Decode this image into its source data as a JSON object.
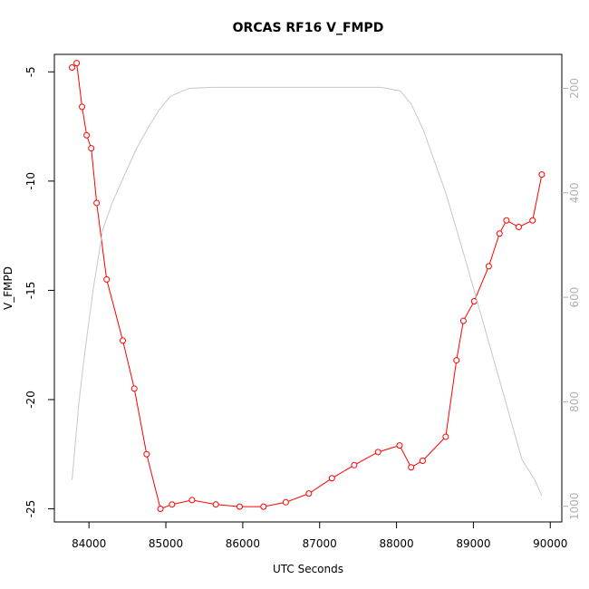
{
  "chart_data": {
    "type": "line",
    "title": "ORCAS RF16 V_FMPD",
    "xlabel": "UTC Seconds",
    "ylabel": "V_FMPD",
    "xlim": [
      83550,
      90150
    ],
    "ylim": [
      -25.6,
      -4.2
    ],
    "y2lim": [
      1030,
      135
    ],
    "y2_reversed": true,
    "grid": false,
    "x_ticks": [
      84000,
      85000,
      86000,
      87000,
      88000,
      89000,
      90000
    ],
    "y_ticks": [
      -25,
      -20,
      -15,
      -10,
      -5
    ],
    "y2_ticks": [
      200,
      400,
      600,
      800,
      1000
    ],
    "series": [
      {
        "color": "#ff0000",
        "marker": "open-circle",
        "x": [
          83780,
          83840,
          83910,
          83970,
          84030,
          84100,
          84230,
          84440,
          84590,
          84750,
          84930,
          85080,
          85340,
          85650,
          85960,
          86270,
          86560,
          86860,
          87160,
          87450,
          87760,
          88040,
          88190,
          88340,
          88640,
          88780,
          88870,
          89010,
          89200,
          89340,
          89430,
          89590,
          89770,
          89890
        ],
        "y": [
          -4.8,
          -4.6,
          -6.6,
          -7.9,
          -8.5,
          -11.0,
          -14.5,
          -17.3,
          -19.5,
          -22.5,
          -25.0,
          -24.8,
          -24.6,
          -24.8,
          -24.9,
          -24.9,
          -24.7,
          -24.3,
          -23.6,
          -23.0,
          -22.4,
          -22.1,
          -23.1,
          -22.8,
          -21.7,
          -18.2,
          -16.4,
          -15.5,
          -13.9,
          -12.4,
          -11.8,
          -12.1,
          -11.8,
          -9.7
        ]
      },
      {
        "color": "#c8c8c8",
        "marker": "none",
        "axis": "right",
        "x": [
          83780,
          83870,
          83950,
          84060,
          84180,
          84300,
          84450,
          84620,
          84790,
          84920,
          85060,
          85300,
          85600,
          86000,
          86500,
          87000,
          87500,
          87800,
          88050,
          88190,
          88350,
          88640,
          88900,
          89150,
          89400,
          89630,
          89800,
          89890
        ],
        "y": [
          950,
          800,
          700,
          580,
          470,
          420,
          370,
          315,
          270,
          240,
          215,
          200,
          198,
          198,
          198,
          198,
          198,
          198,
          205,
          230,
          280,
          400,
          530,
          660,
          790,
          910,
          950,
          980
        ]
      }
    ]
  }
}
